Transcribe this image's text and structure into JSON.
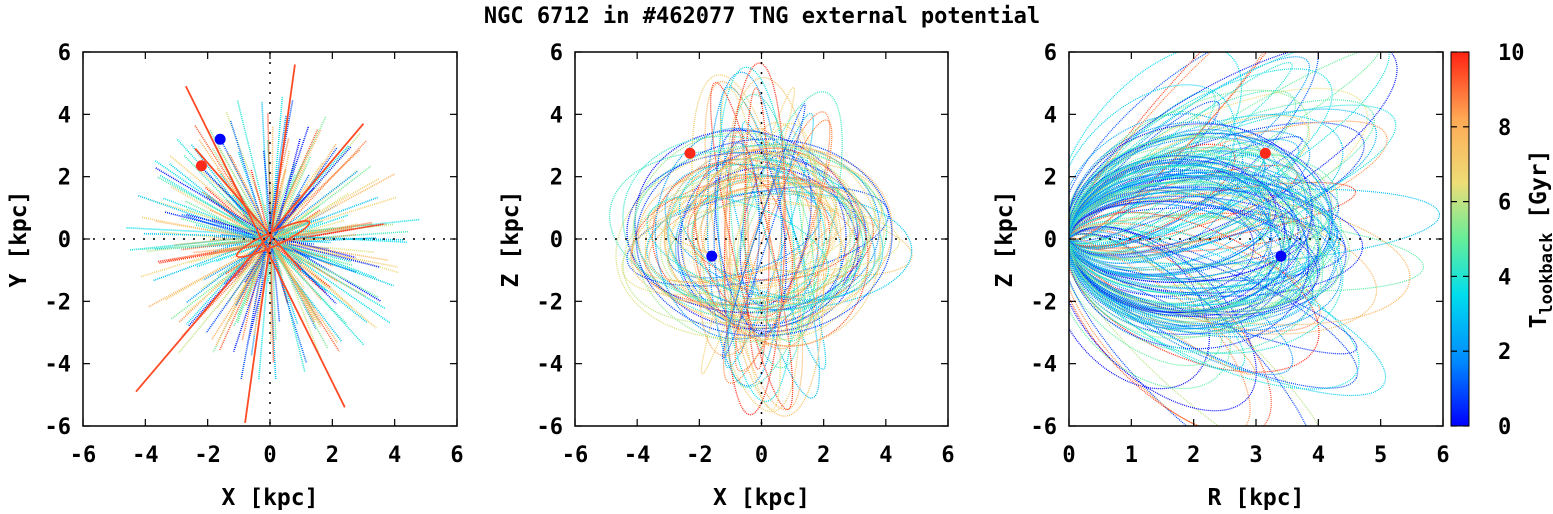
{
  "title": "NGC 6712 in #462077 TNG external potential",
  "chart_data": [
    {
      "type": "line",
      "name": "xy-projection",
      "xlabel": "X [kpc]",
      "ylabel": "Y [kpc]",
      "xlim": [
        -6,
        6
      ],
      "ylim": [
        -6,
        6
      ],
      "xticks": [
        "-6",
        "-4",
        "-2",
        "0",
        "2",
        "4",
        "6"
      ],
      "yticks": [
        "-6",
        "-4",
        "-2",
        "0",
        "2",
        "4",
        "6"
      ],
      "orbit_style": "radial",
      "current_position": {
        "x": -1.6,
        "y": 3.2,
        "color": "#0000ff"
      },
      "initial_position": {
        "x": -2.2,
        "y": 2.35,
        "color": "#ff2a1a"
      }
    },
    {
      "type": "line",
      "name": "xz-projection",
      "xlabel": "X [kpc]",
      "ylabel": "Z [kpc]",
      "xlim": [
        -6,
        6
      ],
      "ylim": [
        -6,
        6
      ],
      "xticks": [
        "-6",
        "-4",
        "-2",
        "0",
        "2",
        "4",
        "6"
      ],
      "yticks": [
        "-6",
        "-4",
        "-2",
        "0",
        "2",
        "4",
        "6"
      ],
      "orbit_style": "loops",
      "current_position": {
        "x": -1.6,
        "y": -0.55,
        "color": "#0000ff"
      },
      "initial_position": {
        "x": -2.3,
        "y": 2.75,
        "color": "#ff2a1a"
      }
    },
    {
      "type": "line",
      "name": "rz-projection",
      "xlabel": "R [kpc]",
      "ylabel": "Z [kpc]",
      "xlim": [
        0,
        6
      ],
      "ylim": [
        -6,
        6
      ],
      "xticks": [
        "0",
        "1",
        "2",
        "3",
        "4",
        "5",
        "6"
      ],
      "yticks": [
        "-6",
        "-4",
        "-2",
        "0",
        "2",
        "4",
        "6"
      ],
      "orbit_style": "petals",
      "current_position": {
        "x": 3.4,
        "y": -0.55,
        "color": "#0000ff"
      },
      "initial_position": {
        "x": 3.15,
        "y": 2.75,
        "color": "#ff2a1a"
      }
    }
  ],
  "colorbar": {
    "label_main": "T",
    "label_sub": "lookback",
    "label_unit": " [Gyr]",
    "range": [
      0,
      10
    ],
    "ticks": [
      "0",
      "2",
      "4",
      "6",
      "8",
      "10"
    ],
    "colormap": [
      "#0000ff",
      "#0088ff",
      "#00ddee",
      "#66ee99",
      "#eedd77",
      "#ffaa55",
      "#ff2211"
    ]
  }
}
